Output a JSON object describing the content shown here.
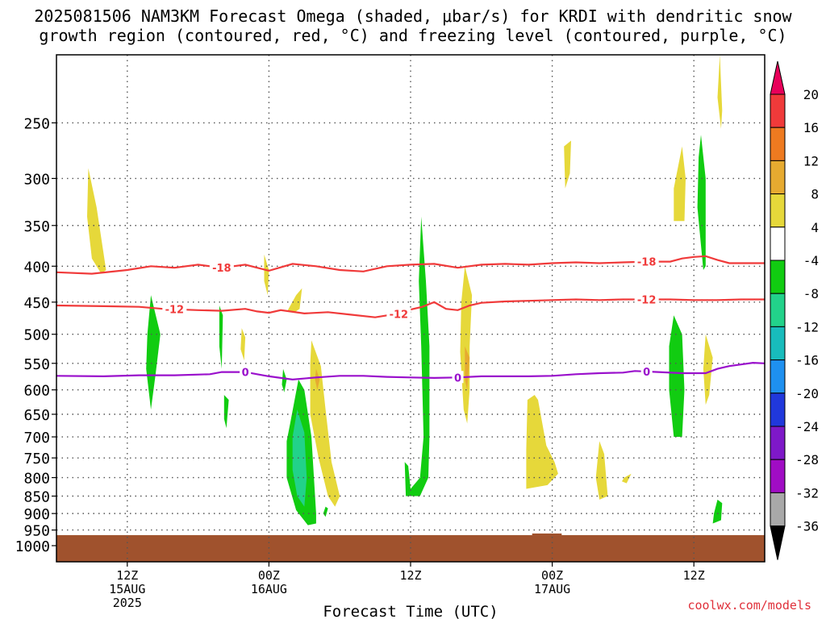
{
  "title": {
    "line1": "2025081506 NAM3KM Forecast Omega (shaded, μbar/s) for KRDI with dendritic snow",
    "line2": "growth region (contoured, red, °C) and freezing level (contoured, purple, °C)"
  },
  "credit": "coolwx.com/models",
  "chart_data": {
    "type": "time-height contour",
    "xlabel": "Forecast Time (UTC)",
    "x_range_hours": [
      0,
      60
    ],
    "x_ticks": [
      {
        "hour": 6,
        "labels": [
          "12Z",
          "15AUG",
          "2025"
        ]
      },
      {
        "hour": 18,
        "labels": [
          "00Z",
          "16AUG"
        ]
      },
      {
        "hour": 30,
        "labels": [
          "12Z"
        ]
      },
      {
        "hour": 42,
        "labels": [
          "00Z",
          "17AUG"
        ]
      },
      {
        "hour": 54,
        "labels": [
          "12Z"
        ]
      }
    ],
    "y_scale": "log pressure (hPa)",
    "y_range_hpa": [
      1000,
      200
    ],
    "y_ticks": [
      250,
      300,
      350,
      400,
      450,
      500,
      550,
      600,
      650,
      700,
      750,
      800,
      850,
      900,
      950,
      1000
    ],
    "colorbar": {
      "labels": [
        "20",
        "16",
        "12",
        "8",
        "4",
        "-4",
        "-8",
        "-12",
        "-16",
        "-20",
        "-24",
        "-28",
        "-32",
        "-36"
      ],
      "colors": [
        "#e8005a",
        "#f03a3a",
        "#ee7a20",
        "#e6aa30",
        "#e6d83a",
        "#ffffff",
        "#11cc11",
        "#22d28a",
        "#18bcbc",
        "#1e90f0",
        "#2038dc",
        "#7e18c8",
        "#a00cc4",
        "#a8a8a8",
        "#000000"
      ]
    },
    "contours": [
      {
        "name": "-18",
        "color": "#f03a3a",
        "label_hours": [
          14,
          50
        ],
        "points": [
          [
            0,
            408
          ],
          [
            3,
            410
          ],
          [
            6,
            405
          ],
          [
            8,
            400
          ],
          [
            10,
            402
          ],
          [
            12,
            398
          ],
          [
            14,
            402
          ],
          [
            16,
            398
          ],
          [
            18,
            406
          ],
          [
            20,
            397
          ],
          [
            22,
            400
          ],
          [
            24,
            405
          ],
          [
            26,
            407
          ],
          [
            28,
            400
          ],
          [
            30,
            398
          ],
          [
            32,
            397
          ],
          [
            34,
            402
          ],
          [
            36,
            398
          ],
          [
            38,
            397
          ],
          [
            40,
            398
          ],
          [
            42,
            396
          ],
          [
            44,
            395
          ],
          [
            46,
            396
          ],
          [
            48,
            395
          ],
          [
            50,
            394
          ],
          [
            52,
            394
          ],
          [
            53,
            390
          ],
          [
            54,
            388
          ],
          [
            55,
            387
          ],
          [
            56,
            392
          ],
          [
            57,
            396
          ],
          [
            58,
            396
          ],
          [
            60,
            396
          ]
        ]
      },
      {
        "name": "-12",
        "color": "#f03a3a",
        "label_hours": [
          10,
          29,
          50
        ],
        "points": [
          [
            0,
            455
          ],
          [
            4,
            456
          ],
          [
            7,
            457
          ],
          [
            9,
            460
          ],
          [
            12,
            462
          ],
          [
            14,
            463
          ],
          [
            16,
            460
          ],
          [
            17,
            464
          ],
          [
            18,
            466
          ],
          [
            19,
            462
          ],
          [
            21,
            467
          ],
          [
            23,
            465
          ],
          [
            25,
            469
          ],
          [
            27,
            473
          ],
          [
            28,
            470
          ],
          [
            29,
            468
          ],
          [
            30,
            461
          ],
          [
            31,
            457
          ],
          [
            32,
            450
          ],
          [
            33,
            460
          ],
          [
            34,
            462
          ],
          [
            35,
            455
          ],
          [
            36,
            451
          ],
          [
            38,
            449
          ],
          [
            40,
            448
          ],
          [
            42,
            447
          ],
          [
            44,
            446
          ],
          [
            46,
            447
          ],
          [
            48,
            446
          ],
          [
            50,
            446
          ],
          [
            52,
            446
          ],
          [
            54,
            447
          ],
          [
            56,
            447
          ],
          [
            58,
            446
          ],
          [
            60,
            446
          ]
        ]
      },
      {
        "name": "0",
        "color": "#9a10cc",
        "label_hours": [
          16,
          34,
          50
        ],
        "points": [
          [
            0,
            573
          ],
          [
            4,
            574
          ],
          [
            7,
            572
          ],
          [
            10,
            572
          ],
          [
            13,
            570
          ],
          [
            14,
            566
          ],
          [
            16,
            566
          ],
          [
            17,
            570
          ],
          [
            18,
            574
          ],
          [
            20,
            580
          ],
          [
            22,
            576
          ],
          [
            24,
            573
          ],
          [
            26,
            573
          ],
          [
            28,
            575
          ],
          [
            30,
            576
          ],
          [
            32,
            577
          ],
          [
            34,
            576
          ],
          [
            36,
            574
          ],
          [
            38,
            574
          ],
          [
            40,
            574
          ],
          [
            42,
            573
          ],
          [
            44,
            570
          ],
          [
            46,
            568
          ],
          [
            48,
            567
          ],
          [
            49,
            564
          ],
          [
            51,
            566
          ],
          [
            53,
            568
          ],
          [
            55,
            568
          ],
          [
            56,
            560
          ],
          [
            57,
            555
          ],
          [
            58,
            552
          ],
          [
            59,
            549
          ],
          [
            60,
            550
          ]
        ]
      }
    ],
    "shading": [
      {
        "value_class": "4",
        "color": "#e6d83a",
        "points": [
          [
            2.7,
            290
          ],
          [
            3.4,
            330
          ],
          [
            4.2,
            405
          ],
          [
            3.8,
            410
          ],
          [
            3.0,
            390
          ],
          [
            2.6,
            340
          ]
        ]
      },
      {
        "value_class": "4",
        "color": "#e6d83a",
        "points": [
          [
            17.6,
            385
          ],
          [
            18.0,
            405
          ],
          [
            17.9,
            440
          ],
          [
            17.6,
            420
          ]
        ]
      },
      {
        "value_class": "4",
        "color": "#e6d83a",
        "points": [
          [
            19.6,
            462
          ],
          [
            20.3,
            440
          ],
          [
            20.8,
            430
          ],
          [
            20.6,
            460
          ],
          [
            20.1,
            466
          ]
        ]
      },
      {
        "value_class": "4",
        "color": "#e6d83a",
        "points": [
          [
            15.7,
            490
          ],
          [
            16.0,
            505
          ],
          [
            15.9,
            545
          ],
          [
            15.6,
            525
          ]
        ]
      },
      {
        "value_class": "4",
        "color": "#e6d83a",
        "points": [
          [
            21.6,
            510
          ],
          [
            22.4,
            555
          ],
          [
            22.8,
            640
          ],
          [
            23.3,
            760
          ],
          [
            24.0,
            850
          ],
          [
            23.6,
            880
          ],
          [
            23.0,
            850
          ],
          [
            22.2,
            750
          ],
          [
            21.5,
            650
          ],
          [
            21.5,
            550
          ]
        ]
      },
      {
        "value_class": "4",
        "color": "#e6d83a",
        "points": [
          [
            34.6,
            400
          ],
          [
            35.2,
            440
          ],
          [
            35.0,
            520
          ],
          [
            35.0,
            600
          ],
          [
            34.8,
            670
          ],
          [
            34.5,
            640
          ],
          [
            34.2,
            530
          ],
          [
            34.3,
            450
          ]
        ]
      },
      {
        "value_class": "4",
        "color": "#e6d83a",
        "points": [
          [
            40.5,
            610
          ],
          [
            40.8,
            620
          ],
          [
            41.5,
            720
          ],
          [
            42.2,
            760
          ],
          [
            42.5,
            790
          ],
          [
            41.6,
            820
          ],
          [
            39.8,
            830
          ],
          [
            39.8,
            730
          ],
          [
            39.9,
            620
          ]
        ]
      },
      {
        "value_class": "4",
        "color": "#e6d83a",
        "points": [
          [
            43.0,
            270
          ],
          [
            43.6,
            265
          ],
          [
            43.5,
            295
          ],
          [
            43.1,
            310
          ]
        ]
      },
      {
        "value_class": "4",
        "color": "#e6d83a",
        "points": [
          [
            46.0,
            710
          ],
          [
            46.4,
            740
          ],
          [
            46.7,
            850
          ],
          [
            46.0,
            860
          ],
          [
            45.7,
            800
          ]
        ]
      },
      {
        "value_class": "4",
        "color": "#e6d83a",
        "points": [
          [
            48.1,
            800
          ],
          [
            48.7,
            790
          ],
          [
            48.3,
            815
          ],
          [
            47.9,
            810
          ]
        ]
      },
      {
        "value_class": "4",
        "color": "#e6d83a",
        "points": [
          [
            52.3,
            310
          ],
          [
            53.0,
            270
          ],
          [
            53.3,
            300
          ],
          [
            53.2,
            345
          ],
          [
            52.3,
            345
          ]
        ]
      },
      {
        "value_class": "4",
        "color": "#e6d83a",
        "points": [
          [
            55.0,
            500
          ],
          [
            55.6,
            540
          ],
          [
            55.3,
            610
          ],
          [
            55.0,
            630
          ],
          [
            54.8,
            560
          ]
        ]
      },
      {
        "value_class": "4",
        "color": "#e6d83a",
        "points": [
          [
            56.2,
            200
          ],
          [
            56.4,
            240
          ],
          [
            56.3,
            255
          ],
          [
            56.0,
            230
          ]
        ]
      },
      {
        "value_class": "8",
        "color": "#e6aa30",
        "points": [
          [
            34.6,
            520
          ],
          [
            35.0,
            540
          ],
          [
            34.8,
            600
          ],
          [
            34.6,
            580
          ]
        ]
      },
      {
        "value_class": "8",
        "color": "#e6aa30",
        "points": [
          [
            22.0,
            560
          ],
          [
            22.3,
            580
          ],
          [
            22.1,
            600
          ],
          [
            21.9,
            580
          ]
        ]
      },
      {
        "value_class": "-4",
        "color": "#11cc11",
        "points": [
          [
            8.0,
            440
          ],
          [
            8.8,
            500
          ],
          [
            8.4,
            570
          ],
          [
            8.0,
            640
          ],
          [
            7.6,
            560
          ],
          [
            7.7,
            500
          ]
        ]
      },
      {
        "value_class": "-4",
        "color": "#11cc11",
        "points": [
          [
            13.8,
            455
          ],
          [
            14.1,
            470
          ],
          [
            14.0,
            560
          ],
          [
            13.8,
            520
          ]
        ]
      },
      {
        "value_class": "-4",
        "color": "#11cc11",
        "points": [
          [
            14.2,
            610
          ],
          [
            14.6,
            620
          ],
          [
            14.4,
            680
          ],
          [
            14.2,
            660
          ]
        ]
      },
      {
        "value_class": "-4",
        "color": "#11cc11",
        "points": [
          [
            19.2,
            560
          ],
          [
            19.5,
            580
          ],
          [
            19.3,
            605
          ],
          [
            19.1,
            590
          ]
        ]
      },
      {
        "value_class": "-4",
        "color": "#11cc11",
        "points": [
          [
            20.5,
            580
          ],
          [
            21.0,
            600
          ],
          [
            21.6,
            700
          ],
          [
            22.0,
            900
          ],
          [
            22.0,
            930
          ],
          [
            21.3,
            935
          ],
          [
            20.3,
            890
          ],
          [
            19.5,
            800
          ],
          [
            19.5,
            710
          ],
          [
            19.8,
            670
          ]
        ]
      },
      {
        "value_class": "-4",
        "color": "#11cc11",
        "points": [
          [
            22.8,
            880
          ],
          [
            23.0,
            885
          ],
          [
            22.8,
            910
          ],
          [
            22.6,
            900
          ]
        ]
      },
      {
        "value_class": "-4",
        "color": "#11cc11",
        "points": [
          [
            30.9,
            340
          ],
          [
            31.3,
            420
          ],
          [
            31.6,
            520
          ],
          [
            31.6,
            700
          ],
          [
            31.5,
            800
          ],
          [
            30.8,
            850
          ],
          [
            29.6,
            850
          ],
          [
            29.5,
            760
          ],
          [
            29.8,
            770
          ],
          [
            30.0,
            830
          ],
          [
            30.8,
            800
          ],
          [
            31.1,
            700
          ],
          [
            30.9,
            520
          ],
          [
            30.7,
            420
          ]
        ]
      },
      {
        "value_class": "-4",
        "color": "#11cc11",
        "points": [
          [
            52.3,
            470
          ],
          [
            53.0,
            500
          ],
          [
            53.2,
            600
          ],
          [
            53.0,
            700
          ],
          [
            52.3,
            700
          ],
          [
            51.9,
            600
          ],
          [
            51.9,
            520
          ]
        ]
      },
      {
        "value_class": "-4",
        "color": "#11cc11",
        "points": [
          [
            54.6,
            260
          ],
          [
            55.0,
            300
          ],
          [
            55.0,
            400
          ],
          [
            54.8,
            405
          ],
          [
            54.3,
            330
          ],
          [
            54.4,
            280
          ]
        ]
      },
      {
        "value_class": "-4",
        "color": "#11cc11",
        "points": [
          [
            56.0,
            860
          ],
          [
            56.4,
            870
          ],
          [
            56.3,
            920
          ],
          [
            55.6,
            930
          ],
          [
            55.7,
            900
          ]
        ]
      },
      {
        "value_class": "-8",
        "color": "#22d28a",
        "points": [
          [
            20.4,
            640
          ],
          [
            21.0,
            690
          ],
          [
            21.2,
            800
          ],
          [
            21.0,
            880
          ],
          [
            20.4,
            850
          ],
          [
            20.0,
            780
          ],
          [
            20.0,
            700
          ]
        ]
      }
    ],
    "terrain": {
      "color": "#a0522d",
      "from_hpa": 966,
      "to_hpa": 1050
    }
  }
}
